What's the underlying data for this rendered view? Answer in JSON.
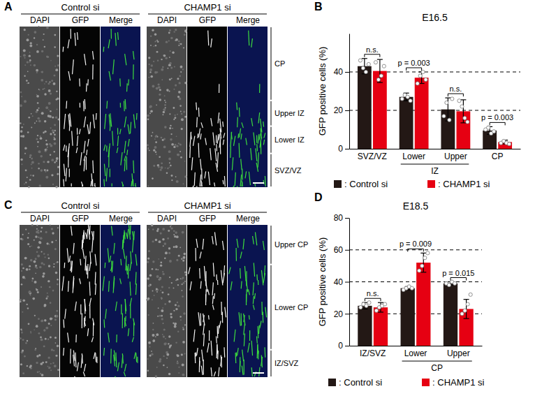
{
  "panels": [
    {
      "letter": "A",
      "conditions": [
        "Control si",
        "CHAMP1 si"
      ],
      "channels": [
        "DAPI",
        "GFP",
        "Merge"
      ],
      "zones": [
        "CP",
        "Upper IZ",
        "Lower IZ",
        "SVZ/VZ"
      ]
    },
    {
      "letter": "C",
      "conditions": [
        "Control si",
        "CHAMP1 si"
      ],
      "channels": [
        "DAPI",
        "GFP",
        "Merge"
      ],
      "zones": [
        "Upper CP",
        "Lower CP",
        "IZ/SVZ"
      ]
    }
  ],
  "chart_data": [
    {
      "panel": "B",
      "type": "bar",
      "title": "E16.5",
      "y_label": "GFP positive cells (%)",
      "categories": [
        "SVZ/VZ",
        "Lower",
        "Upper",
        "CP"
      ],
      "groups": [
        {
          "label": "IZ",
          "categories": [
            "Lower",
            "Upper"
          ]
        }
      ],
      "series": [
        {
          "name": "Control si",
          "color": "#231815",
          "values": [
            43,
            27,
            20.5,
            9.5
          ],
          "errors": [
            4,
            2,
            6,
            2
          ],
          "points": [
            [
              46,
              42,
              40,
              44
            ],
            [
              26,
              28,
              27,
              25
            ],
            [
              17,
              24,
              15,
              26
            ],
            [
              10,
              11,
              8,
              9
            ]
          ]
        },
        {
          "name": "CHAMP1 si",
          "color": "#e60012",
          "values": [
            40.5,
            37,
            19.5,
            3.5
          ],
          "errors": [
            6,
            3,
            6,
            1
          ],
          "points": [
            [
              45,
              36,
              38,
              43
            ],
            [
              34,
              38,
              40,
              36
            ],
            [
              25,
              22,
              16,
              14
            ],
            [
              3,
              4,
              3,
              2.5
            ]
          ]
        }
      ],
      "annotations": [
        {
          "category": "SVZ/VZ",
          "label": "n.s."
        },
        {
          "category": "Lower",
          "label": "p = 0.003"
        },
        {
          "category": "Upper",
          "label": "n.s."
        },
        {
          "category": "CP",
          "label": "p = 0.003"
        }
      ],
      "ylim": [
        0,
        60
      ],
      "yticks": [
        0,
        20,
        40
      ],
      "grid": true,
      "legend": "bottom",
      "legend_separator": ":"
    },
    {
      "panel": "D",
      "type": "bar",
      "title": "E18.5",
      "y_label": "GFP positive cells (%)",
      "categories": [
        "IZ/SVZ",
        "Lower",
        "Upper"
      ],
      "groups": [
        {
          "label": "CP",
          "categories": [
            "Lower",
            "Upper"
          ]
        }
      ],
      "series": [
        {
          "name": "Control si",
          "color": "#231815",
          "values": [
            25,
            36,
            39
          ],
          "errors": [
            2,
            1,
            1
          ],
          "points": [
            [
              24,
              26,
              25,
              27
            ],
            [
              35,
              36,
              37,
              36
            ],
            [
              39,
              38,
              40,
              39
            ]
          ]
        },
        {
          "name": "CHAMP1 si",
          "color": "#e60012",
          "values": [
            24,
            52,
            23
          ],
          "errors": [
            3,
            6,
            6
          ],
          "points": [
            [
              22,
              24,
              25,
              26
            ],
            [
              47,
              50,
              55,
              58
            ],
            [
              20,
              22,
              26,
              32
            ]
          ]
        }
      ],
      "annotations": [
        {
          "category": "IZ/SVZ",
          "label": "n.s."
        },
        {
          "category": "Lower",
          "label": "p = 0.009"
        },
        {
          "category": "Upper",
          "label": "p = 0.015"
        }
      ],
      "ylim": [
        0,
        80
      ],
      "yticks": [
        0,
        20,
        40,
        60,
        80
      ],
      "grid": true,
      "legend": "bottom",
      "legend_separator": ":"
    }
  ]
}
